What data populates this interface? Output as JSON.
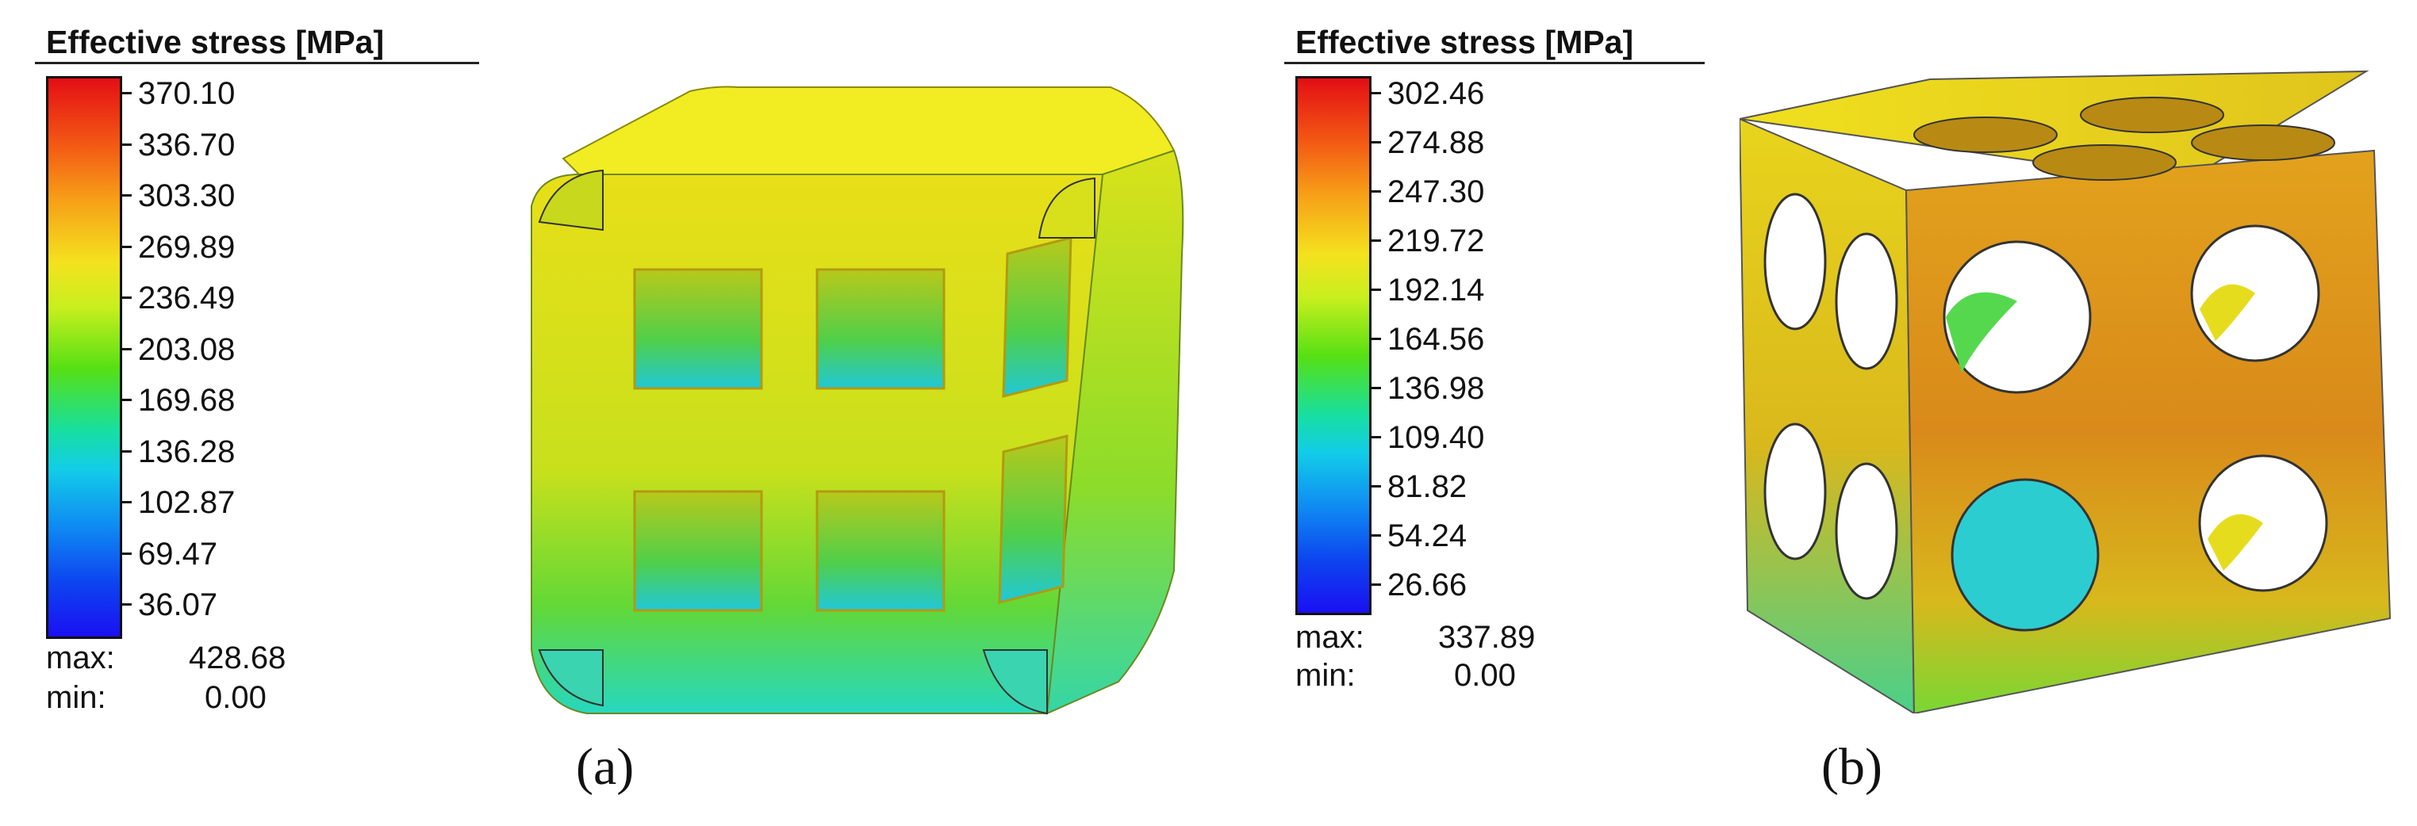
{
  "panels": [
    {
      "legend_title": "Effective stress [MPa]",
      "ticks": [
        "370.10",
        "336.70",
        "303.30",
        "269.89",
        "236.49",
        "203.08",
        "169.68",
        "136.28",
        "102.87",
        "69.47",
        "36.07"
      ],
      "max_label": "max:",
      "max_value": "428.68",
      "min_label": "min:",
      "min_value": "0.00",
      "caption": "(a)"
    },
    {
      "legend_title": "Effective stress [MPa]",
      "ticks": [
        "302.46",
        "274.88",
        "247.30",
        "219.72",
        "192.14",
        "164.56",
        "136.98",
        "109.40",
        "81.82",
        "54.24",
        "26.66"
      ],
      "max_label": "max:",
      "max_value": "337.89",
      "min_label": "min:",
      "min_value": "0.00",
      "caption": "(b)"
    }
  ],
  "colormap": [
    "#1a10f2",
    "#0d46f0",
    "#0f8cf2",
    "#12cde8",
    "#17dfa0",
    "#56e014",
    "#c8ef1e",
    "#f4e21e",
    "#f7a118",
    "#f35a14",
    "#e40e14"
  ]
}
